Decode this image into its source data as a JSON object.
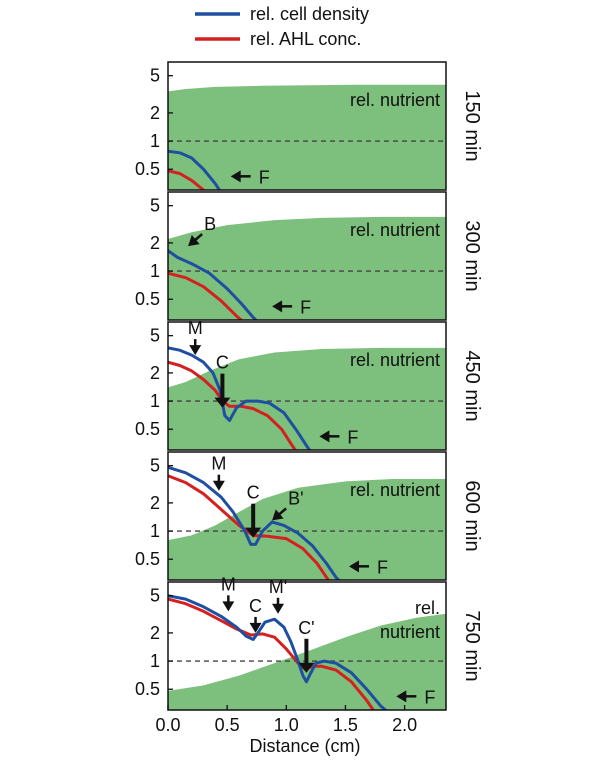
{
  "chart_data": {
    "type": "line",
    "xlabel": "Distance (cm)",
    "xlim": [
      0,
      2.35
    ],
    "x_ticks": [
      0,
      0.5,
      1,
      1.5,
      2
    ],
    "x_tick_labels": [
      "0.0",
      "0.5",
      "1.0",
      "1.5",
      "2.0"
    ],
    "ylim": [
      0.3,
      7
    ],
    "y_scale": "log",
    "y_ticks": [
      0.5,
      1,
      2,
      5
    ],
    "y_tick_labels": [
      "0.5",
      "1",
      "2",
      "5"
    ],
    "reference_line": 1,
    "legend": [
      {
        "name": "rel. cell density",
        "color": "#1f4fa0"
      },
      {
        "name": "rel. AHL conc.",
        "color": "#d42020"
      }
    ],
    "nutrient_color": "#7dbf7d",
    "panels": [
      {
        "time_label": "150 min",
        "nutrient_label": [
          "rel. nutrient"
        ],
        "nutrient": {
          "x": [
            0,
            0.15,
            0.4,
            0.8,
            1.2,
            1.6,
            2.0,
            2.35
          ],
          "y": [
            3.4,
            3.6,
            3.8,
            3.9,
            3.95,
            4.0,
            4.0,
            4.0
          ]
        },
        "cell_density": {
          "x": [
            0,
            0.1,
            0.2,
            0.3,
            0.4,
            0.45
          ],
          "y": [
            0.78,
            0.75,
            0.66,
            0.5,
            0.35,
            0.28
          ]
        },
        "ahl": {
          "x": [
            0,
            0.1,
            0.2,
            0.3,
            0.36
          ],
          "y": [
            0.48,
            0.45,
            0.38,
            0.3,
            0.26
          ]
        },
        "arrows": [
          {
            "label": "F",
            "x": 0.53,
            "y": 0.42,
            "dir": "left"
          }
        ]
      },
      {
        "time_label": "300 min",
        "nutrient_label": [
          "rel. nutrient"
        ],
        "nutrient": {
          "x": [
            0,
            0.2,
            0.5,
            0.9,
            1.3,
            1.8,
            2.35
          ],
          "y": [
            2.2,
            2.6,
            3.1,
            3.5,
            3.7,
            3.8,
            3.8
          ]
        },
        "cell_density": {
          "x": [
            0,
            0.08,
            0.2,
            0.35,
            0.5,
            0.62,
            0.72,
            0.78
          ],
          "y": [
            1.65,
            1.4,
            1.2,
            0.95,
            0.65,
            0.45,
            0.32,
            0.27
          ]
        },
        "ahl": {
          "x": [
            0,
            0.15,
            0.3,
            0.45,
            0.58,
            0.66
          ],
          "y": [
            0.95,
            0.85,
            0.68,
            0.48,
            0.33,
            0.27
          ]
        },
        "arrows": [
          {
            "label": "B",
            "x": 0.17,
            "y": 1.85,
            "dir": "down-left"
          },
          {
            "label": "F",
            "x": 0.88,
            "y": 0.42,
            "dir": "left"
          }
        ]
      },
      {
        "time_label": "450 min",
        "nutrient_label": [
          "rel. nutrient"
        ],
        "nutrient": {
          "x": [
            0,
            0.15,
            0.35,
            0.6,
            0.9,
            1.3,
            1.8,
            2.35
          ],
          "y": [
            1.4,
            1.6,
            2.1,
            2.8,
            3.3,
            3.6,
            3.7,
            3.7
          ]
        },
        "cell_density": {
          "x": [
            0,
            0.1,
            0.2,
            0.3,
            0.38,
            0.44,
            0.48,
            0.52,
            0.58,
            0.66,
            0.76,
            0.86,
            0.98,
            1.08,
            1.16,
            1.22
          ],
          "y": [
            3.7,
            3.5,
            3.1,
            2.6,
            2.0,
            1.3,
            0.7,
            0.62,
            0.85,
            1.0,
            1.0,
            0.95,
            0.75,
            0.5,
            0.35,
            0.27
          ]
        },
        "ahl": {
          "x": [
            0,
            0.1,
            0.2,
            0.3,
            0.4,
            0.46,
            0.52,
            0.62,
            0.72,
            0.84,
            0.96,
            1.04,
            1.1
          ],
          "y": [
            2.6,
            2.4,
            2.1,
            1.7,
            1.3,
            1.0,
            0.88,
            0.88,
            0.83,
            0.7,
            0.5,
            0.35,
            0.27
          ]
        },
        "arrows": [
          {
            "label": "M",
            "x": 0.23,
            "y": 3.1,
            "dir": "down"
          },
          {
            "label": "C",
            "x": 0.46,
            "y": 0.85,
            "dir": "down",
            "bold": true
          },
          {
            "label": "F",
            "x": 1.28,
            "y": 0.42,
            "dir": "left"
          }
        ]
      },
      {
        "time_label": "600 min",
        "nutrient_label": [
          "rel. nutrient"
        ],
        "nutrient": {
          "x": [
            0,
            0.2,
            0.4,
            0.6,
            0.8,
            1.1,
            1.5,
            1.9,
            2.35
          ],
          "y": [
            0.8,
            0.9,
            1.15,
            1.6,
            2.2,
            2.9,
            3.4,
            3.6,
            3.6
          ]
        },
        "cell_density": {
          "x": [
            0,
            0.15,
            0.3,
            0.45,
            0.55,
            0.65,
            0.7,
            0.74,
            0.8,
            0.88,
            0.98,
            1.1,
            1.22,
            1.34,
            1.42,
            1.48
          ],
          "y": [
            4.8,
            4.2,
            3.3,
            2.3,
            1.6,
            1.0,
            0.72,
            0.72,
            1.0,
            1.25,
            1.15,
            0.95,
            0.7,
            0.45,
            0.32,
            0.27
          ]
        },
        "ahl": {
          "x": [
            0,
            0.15,
            0.3,
            0.45,
            0.6,
            0.72,
            0.84,
            1.0,
            1.14,
            1.26,
            1.34,
            1.38
          ],
          "y": [
            3.9,
            3.3,
            2.5,
            1.7,
            1.15,
            0.9,
            0.88,
            0.83,
            0.65,
            0.45,
            0.32,
            0.27
          ]
        },
        "arrows": [
          {
            "label": "M",
            "x": 0.43,
            "y": 2.7,
            "dir": "down"
          },
          {
            "label": "C",
            "x": 0.72,
            "y": 0.85,
            "dir": "down",
            "bold": true
          },
          {
            "label": "B'",
            "x": 0.88,
            "y": 1.3,
            "dir": "down-left"
          },
          {
            "label": "F",
            "x": 1.53,
            "y": 0.42,
            "dir": "left"
          }
        ]
      },
      {
        "time_label": "750 min",
        "nutrient_label": [
          "rel.",
          "nutrient"
        ],
        "nutrient": {
          "x": [
            0,
            0.3,
            0.6,
            0.9,
            1.2,
            1.5,
            1.8,
            2.1,
            2.35
          ],
          "y": [
            0.48,
            0.55,
            0.7,
            0.95,
            1.3,
            1.8,
            2.4,
            2.9,
            3.2
          ]
        },
        "cell_density": {
          "x": [
            0,
            0.15,
            0.3,
            0.45,
            0.58,
            0.66,
            0.72,
            0.76,
            0.82,
            0.9,
            0.98,
            1.04,
            1.1,
            1.14,
            1.17,
            1.2,
            1.25,
            1.32,
            1.42,
            1.55,
            1.68,
            1.8,
            1.88
          ],
          "y": [
            5.0,
            4.6,
            3.8,
            3.0,
            2.3,
            1.85,
            1.7,
            2.0,
            2.6,
            2.8,
            2.3,
            1.6,
            1.0,
            0.7,
            0.6,
            0.72,
            0.95,
            1.0,
            0.95,
            0.75,
            0.5,
            0.33,
            0.27
          ]
        },
        "ahl": {
          "x": [
            0,
            0.15,
            0.3,
            0.45,
            0.58,
            0.7,
            0.8,
            0.9,
            1.0,
            1.1,
            1.16,
            1.22,
            1.3,
            1.42,
            1.55,
            1.68,
            1.76
          ],
          "y": [
            4.6,
            4.1,
            3.4,
            2.7,
            2.2,
            1.9,
            1.95,
            1.8,
            1.35,
            0.95,
            0.82,
            0.88,
            0.88,
            0.8,
            0.6,
            0.38,
            0.27
          ]
        },
        "arrows": [
          {
            "label": "M",
            "x": 0.51,
            "y": 3.4,
            "dir": "down"
          },
          {
            "label": "C",
            "x": 0.74,
            "y": 2.0,
            "dir": "down"
          },
          {
            "label": "M'",
            "x": 0.93,
            "y": 3.2,
            "dir": "down"
          },
          {
            "label": "C'",
            "x": 1.17,
            "y": 0.75,
            "dir": "down",
            "bold": true
          },
          {
            "label": "F",
            "x": 1.93,
            "y": 0.42,
            "dir": "left"
          }
        ]
      }
    ]
  }
}
